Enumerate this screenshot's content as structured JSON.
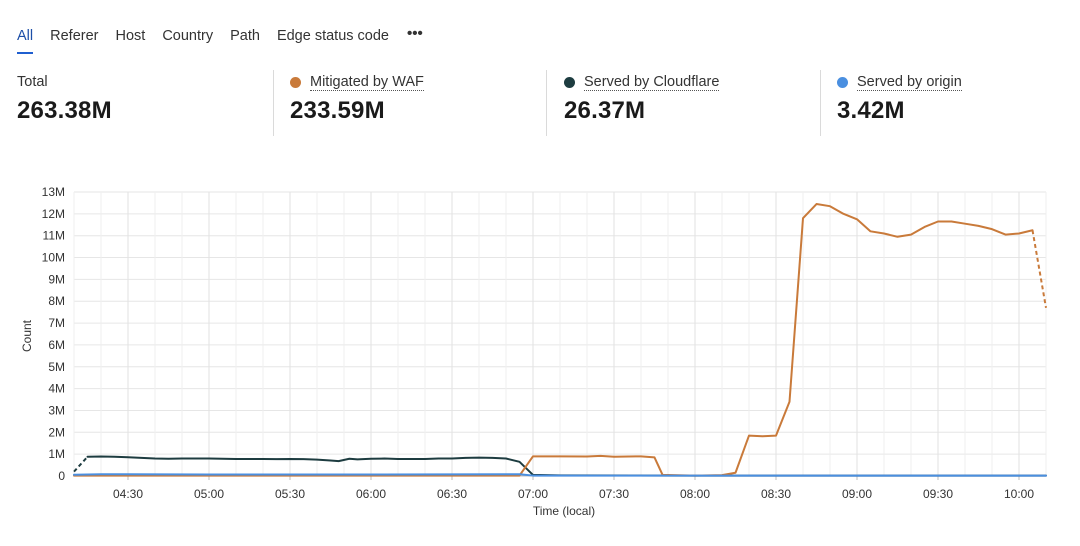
{
  "tabs": [
    {
      "label": "All",
      "active": true
    },
    {
      "label": "Referer",
      "active": false
    },
    {
      "label": "Host",
      "active": false
    },
    {
      "label": "Country",
      "active": false
    },
    {
      "label": "Path",
      "active": false
    },
    {
      "label": "Edge status code",
      "active": false
    }
  ],
  "more_icon": "more-horizontal-icon",
  "stats": {
    "total": {
      "label": "Total",
      "value": "263.38M"
    },
    "mitigated": {
      "label": "Mitigated by WAF",
      "value": "233.59M",
      "color": "#c97a3a"
    },
    "served_cf": {
      "label": "Served by Cloudflare",
      "value": "26.37M",
      "color": "#1d3c40"
    },
    "served_origin": {
      "label": "Served by origin",
      "value": "3.42M",
      "color": "#4a8fe0"
    }
  },
  "chart_data": {
    "type": "line",
    "xlabel": "Time (local)",
    "ylabel": "Count",
    "xlim": [
      "04:10",
      "10:10"
    ],
    "ylim": [
      0,
      13000000
    ],
    "x_ticks": [
      "04:30",
      "05:00",
      "05:30",
      "06:00",
      "06:30",
      "07:00",
      "07:30",
      "08:00",
      "08:30",
      "09:00",
      "09:30",
      "10:00"
    ],
    "y_ticks": [
      "0",
      "1M",
      "2M",
      "3M",
      "4M",
      "5M",
      "6M",
      "7M",
      "8M",
      "9M",
      "10M",
      "11M",
      "12M",
      "13M"
    ],
    "grid": true,
    "legend": "top stat cards",
    "series": [
      {
        "name": "Served by Cloudflare",
        "color": "#1d3c40",
        "points": [
          [
            "04:10",
            200000
          ],
          [
            "04:15",
            880000
          ],
          [
            "04:20",
            890000
          ],
          [
            "04:25",
            880000
          ],
          [
            "04:30",
            860000
          ],
          [
            "04:35",
            830000
          ],
          [
            "04:40",
            800000
          ],
          [
            "04:45",
            790000
          ],
          [
            "04:50",
            800000
          ],
          [
            "04:55",
            800000
          ],
          [
            "05:00",
            800000
          ],
          [
            "05:05",
            790000
          ],
          [
            "05:10",
            780000
          ],
          [
            "05:15",
            780000
          ],
          [
            "05:20",
            780000
          ],
          [
            "05:25",
            770000
          ],
          [
            "05:30",
            780000
          ],
          [
            "05:35",
            770000
          ],
          [
            "05:40",
            750000
          ],
          [
            "05:45",
            710000
          ],
          [
            "05:48",
            680000
          ],
          [
            "05:52",
            790000
          ],
          [
            "05:55",
            760000
          ],
          [
            "06:00",
            790000
          ],
          [
            "06:05",
            800000
          ],
          [
            "06:10",
            780000
          ],
          [
            "06:15",
            780000
          ],
          [
            "06:20",
            780000
          ],
          [
            "06:25",
            800000
          ],
          [
            "06:30",
            800000
          ],
          [
            "06:35",
            830000
          ],
          [
            "06:40",
            840000
          ],
          [
            "06:45",
            830000
          ],
          [
            "06:50",
            800000
          ],
          [
            "06:55",
            650000
          ],
          [
            "07:00",
            50000
          ],
          [
            "07:10",
            30000
          ],
          [
            "08:00",
            20000
          ],
          [
            "09:00",
            20000
          ],
          [
            "10:10",
            20000
          ]
        ],
        "dashed_segments": [
          [
            "04:10",
            "04:15"
          ]
        ]
      },
      {
        "name": "Mitigated by WAF",
        "color": "#c97a3a",
        "points": [
          [
            "04:10",
            20000
          ],
          [
            "05:00",
            20000
          ],
          [
            "06:00",
            20000
          ],
          [
            "06:55",
            20000
          ],
          [
            "07:00",
            900000
          ],
          [
            "07:10",
            900000
          ],
          [
            "07:20",
            890000
          ],
          [
            "07:25",
            920000
          ],
          [
            "07:30",
            880000
          ],
          [
            "07:40",
            900000
          ],
          [
            "07:45",
            850000
          ],
          [
            "07:48",
            50000
          ],
          [
            "08:00",
            20000
          ],
          [
            "08:10",
            40000
          ],
          [
            "08:15",
            150000
          ],
          [
            "08:20",
            1850000
          ],
          [
            "08:25",
            1820000
          ],
          [
            "08:30",
            1850000
          ],
          [
            "08:35",
            3400000
          ],
          [
            "08:40",
            11800000
          ],
          [
            "08:45",
            12450000
          ],
          [
            "08:50",
            12350000
          ],
          [
            "08:55",
            12000000
          ],
          [
            "09:00",
            11750000
          ],
          [
            "09:05",
            11200000
          ],
          [
            "09:10",
            11100000
          ],
          [
            "09:15",
            10950000
          ],
          [
            "09:20",
            11050000
          ],
          [
            "09:25",
            11400000
          ],
          [
            "09:30",
            11650000
          ],
          [
            "09:35",
            11650000
          ],
          [
            "09:40",
            11550000
          ],
          [
            "09:45",
            11450000
          ],
          [
            "09:50",
            11300000
          ],
          [
            "09:55",
            11050000
          ],
          [
            "10:00",
            11100000
          ],
          [
            "10:05",
            11250000
          ],
          [
            "10:10",
            7700000
          ]
        ],
        "dashed_segments": [
          [
            "10:05",
            "10:10"
          ]
        ]
      },
      {
        "name": "Served by origin",
        "color": "#4a8fe0",
        "points": [
          [
            "04:10",
            60000
          ],
          [
            "04:20",
            80000
          ],
          [
            "05:00",
            70000
          ],
          [
            "06:00",
            70000
          ],
          [
            "06:55",
            80000
          ],
          [
            "07:00",
            20000
          ],
          [
            "08:00",
            20000
          ],
          [
            "09:00",
            20000
          ],
          [
            "10:10",
            20000
          ]
        ],
        "dashed_segments": []
      }
    ]
  }
}
